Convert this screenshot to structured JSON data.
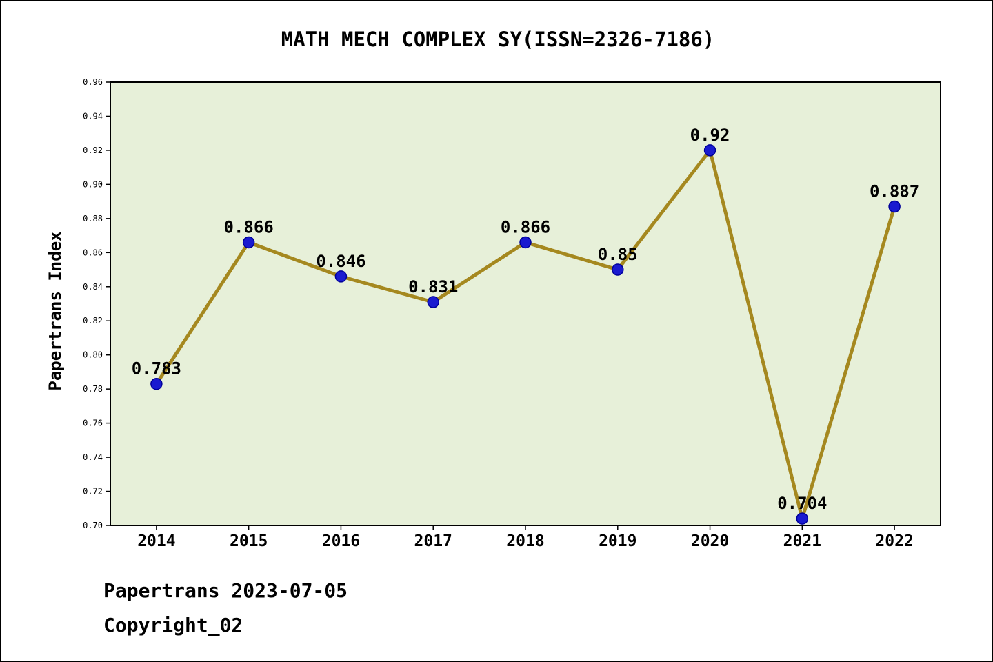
{
  "title": "MATH MECH COMPLEX SY(ISSN=2326-7186)",
  "footer": {
    "line1": "Papertrans 2023-07-05",
    "line2": "Copyright_02"
  },
  "chart_data": {
    "type": "line",
    "title": "MATH MECH COMPLEX SY(ISSN=2326-7186)",
    "xlabel": "",
    "ylabel": "Papertrans Index",
    "categories": [
      "2014",
      "2015",
      "2016",
      "2017",
      "2018",
      "2019",
      "2020",
      "2021",
      "2022"
    ],
    "series": [
      {
        "name": "Papertrans Index",
        "values": [
          0.783,
          0.866,
          0.846,
          0.831,
          0.866,
          0.85,
          0.92,
          0.704,
          0.887
        ]
      }
    ],
    "point_labels": [
      "0.783",
      "0.866",
      "0.846",
      "0.831",
      "0.866",
      "0.85",
      "0.92",
      "0.704",
      "0.887"
    ],
    "ylim": [
      0.7,
      0.96
    ],
    "ytick_step": 0.02,
    "grid": "off",
    "legend": "none",
    "colors": {
      "line": "#a5881f",
      "marker_fill": "#1a1ad0",
      "marker_edge": "#00009a",
      "plot_background": "#e7f0d9",
      "frame": "#000000",
      "page_background": "#ffffff",
      "text": "#000000"
    }
  }
}
